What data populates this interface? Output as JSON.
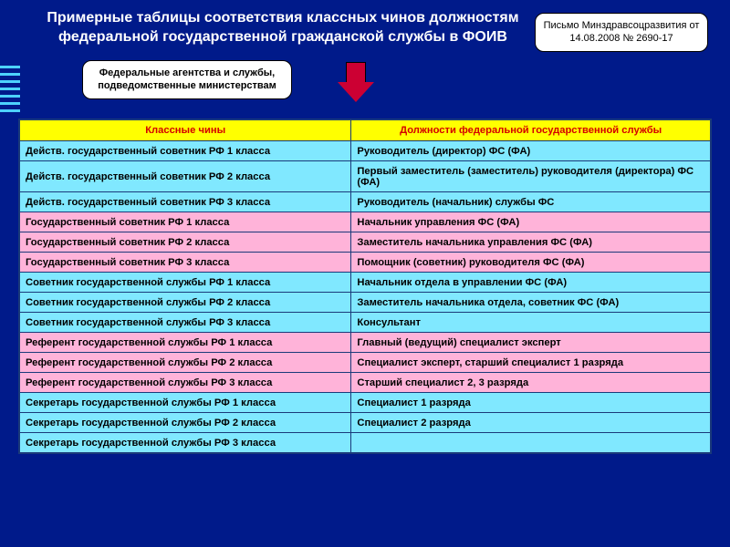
{
  "title": "Примерные таблицы соответствия классных чинов должностям федеральной государственной гражданской службы в ФОИВ",
  "callout_left": "Федеральные агентства и службы, подведомственные министерствам",
  "callout_right": "Письмо Минздравсоцразвития от 14.08.2008 № 2690-17",
  "table": {
    "header_left": "Классные чины",
    "header_right": "Должности федеральной государственной службы",
    "rows": [
      {
        "c": "cyan",
        "l": "Действ. государственный советник РФ 1 класса",
        "r": "Руководитель (директор) ФС (ФА)"
      },
      {
        "c": "cyan",
        "l": "Действ. государственный советник РФ 2 класса",
        "r": "Первый заместитель (заместитель) руководителя (директора) ФС (ФА)"
      },
      {
        "c": "cyan",
        "l": "Действ. государственный советник РФ 3 класса",
        "r": "Руководитель (начальник) службы ФС"
      },
      {
        "c": "pink",
        "l": "Государственный советник РФ 1 класса",
        "r": "Начальник управления ФС (ФА)"
      },
      {
        "c": "pink",
        "l": "Государственный советник РФ 2 класса",
        "r": "Заместитель начальника управления ФС (ФА)"
      },
      {
        "c": "pink",
        "l": "Государственный советник РФ 3 класса",
        "r": "Помощник (советник) руководителя ФС (ФА)"
      },
      {
        "c": "cyan",
        "l": "Советник государственной службы РФ 1 класса",
        "r": "Начальник отдела в управлении ФС (ФА)"
      },
      {
        "c": "cyan",
        "l": "Советник государственной службы РФ 2 класса",
        "r": "Заместитель начальника отдела, советник ФС (ФА)"
      },
      {
        "c": "cyan",
        "l": "Советник государственной службы РФ 3 класса",
        "r": "Консультант"
      },
      {
        "c": "pink",
        "l": "Референт государственной службы РФ 1 класса",
        "r": "Главный (ведущий) специалист эксперт"
      },
      {
        "c": "pink",
        "l": "Референт государственной службы РФ 2 класса",
        "r": "Специалист эксперт, старший специалист 1 разряда"
      },
      {
        "c": "pink",
        "l": "Референт государственной службы РФ 3 класса",
        "r": "Старший специалист 2, 3 разряда"
      },
      {
        "c": "cyan",
        "l": "Секретарь государственной службы РФ 1 класса",
        "r": "Специалист 1 разряда"
      },
      {
        "c": "cyan",
        "l": "Секретарь государственной службы РФ 2 класса",
        "r": "Специалист 2 разряда"
      },
      {
        "c": "cyan",
        "l": "Секретарь государственной службы РФ 3 класса",
        "r": ""
      }
    ]
  },
  "colors": {
    "background": "#001a8a",
    "header_bg": "#ffff00",
    "header_text": "#d40000",
    "row_cyan": "#80e8ff",
    "row_pink": "#ffb3d9",
    "border": "#1a3a7a",
    "title_text": "#ffffff",
    "arrow": "#cc0033"
  }
}
